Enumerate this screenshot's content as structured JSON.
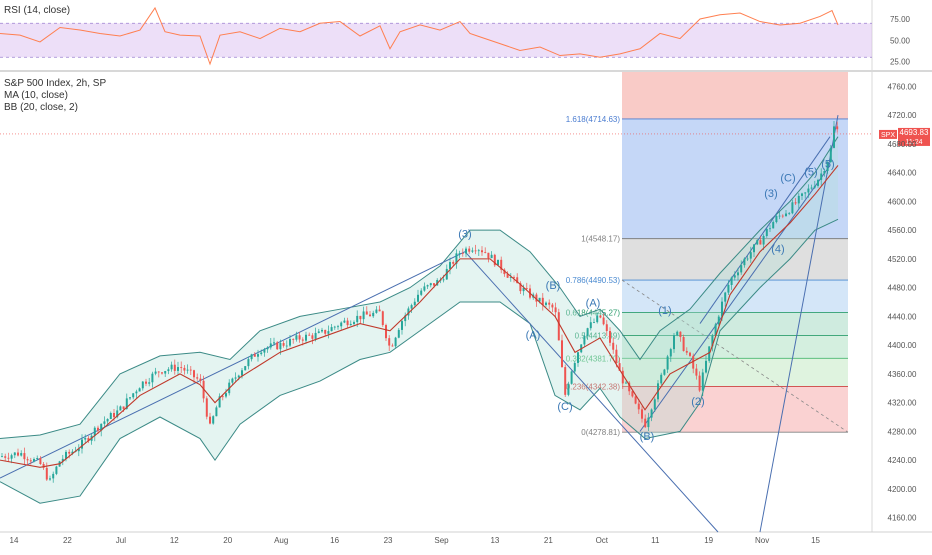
{
  "chart_data": [
    {
      "type": "line",
      "name": "RSI (14, close)",
      "legend": [
        "RSI (14, close)"
      ],
      "y_ticks": [
        "75.00",
        "50.00",
        "25.00"
      ],
      "band": [
        30,
        70
      ],
      "ylim": [
        15,
        95
      ],
      "color": "#ff7f50",
      "band_color": "#d8b8f0",
      "points": [
        [
          0,
          58
        ],
        [
          20,
          56
        ],
        [
          40,
          48
        ],
        [
          60,
          65
        ],
        [
          80,
          62
        ],
        [
          100,
          58
        ],
        [
          120,
          55
        ],
        [
          140,
          62
        ],
        [
          155,
          88
        ],
        [
          165,
          60
        ],
        [
          180,
          56
        ],
        [
          200,
          55
        ],
        [
          210,
          22
        ],
        [
          220,
          56
        ],
        [
          240,
          60
        ],
        [
          260,
          52
        ],
        [
          280,
          64
        ],
        [
          300,
          60
        ],
        [
          320,
          70
        ],
        [
          340,
          72
        ],
        [
          360,
          55
        ],
        [
          380,
          67
        ],
        [
          390,
          40
        ],
        [
          400,
          60
        ],
        [
          420,
          68
        ],
        [
          440,
          62
        ],
        [
          460,
          72
        ],
        [
          470,
          58
        ],
        [
          480,
          54
        ],
        [
          500,
          46
        ],
        [
          520,
          38
        ],
        [
          540,
          42
        ],
        [
          560,
          32
        ],
        [
          580,
          34
        ],
        [
          600,
          30
        ],
        [
          620,
          34
        ],
        [
          640,
          40
        ],
        [
          660,
          58
        ],
        [
          680,
          52
        ],
        [
          700,
          75
        ],
        [
          720,
          80
        ],
        [
          740,
          82
        ],
        [
          760,
          72
        ],
        [
          780,
          68
        ],
        [
          800,
          70
        ],
        [
          820,
          78
        ],
        [
          832,
          85
        ],
        [
          838,
          68
        ]
      ]
    },
    {
      "type": "candlestick",
      "title": "S&P 500 Index, 2h, SP",
      "legend": [
        "MA (10, close)",
        "BB (20, close, 2)"
      ],
      "ylim": [
        4140,
        4780
      ],
      "y_ticks": [
        "4760.00",
        "4720.00",
        "4680.00",
        "4640.00",
        "4600.00",
        "4560.00",
        "4520.00",
        "4480.00",
        "4440.00",
        "4400.00",
        "4360.00",
        "4320.00",
        "4280.00",
        "4240.00",
        "4200.00",
        "4160.00"
      ],
      "x_ticks": [
        "14",
        "22",
        "Jul",
        "12",
        "20",
        "Aug",
        "16",
        "23",
        "Sep",
        "13",
        "21",
        "Oct",
        "11",
        "19",
        "Nov",
        "15"
      ],
      "price_label": {
        "symbol": "SPX",
        "value": "4693.83",
        "time": "11:24",
        "price": 4693.83
      },
      "fib_levels": [
        {
          "label": "1.618(4714.63)",
          "value": 4714.63,
          "color": "#4a7cd0"
        },
        {
          "label": "1(4548.17)",
          "value": 4548.17,
          "color": "#808080"
        },
        {
          "label": "0.786(4490.53)",
          "value": 4490.53,
          "color": "#4a8ad0"
        },
        {
          "label": "0.618(4445.27)",
          "value": 4445.27,
          "color": "#2e9e6e"
        },
        {
          "label": "0.5(4413.49)",
          "value": 4413.49,
          "color": "#2e9e6e"
        },
        {
          "label": "0.382(4381.70)",
          "value": 4381.7,
          "color": "#4ab870"
        },
        {
          "label": "0.236(4342.38)",
          "value": 4342.38,
          "color": "#d04040"
        },
        {
          "label": "0(4278.81)",
          "value": 4278.81,
          "color": "#808080"
        }
      ],
      "wave_labels": [
        {
          "text": "(3)",
          "t": 465,
          "price": 4550
        },
        {
          "text": "(B)",
          "t": 553,
          "price": 4478
        },
        {
          "text": "(A)",
          "t": 593,
          "price": 4454
        },
        {
          "text": "(A)",
          "t": 533,
          "price": 4409
        },
        {
          "text": "(C)",
          "t": 565,
          "price": 4310
        },
        {
          "text": "(1)",
          "t": 665,
          "price": 4443
        },
        {
          "text": "(B)",
          "t": 647,
          "price": 4268
        },
        {
          "text": "(2)",
          "t": 698,
          "price": 4317
        },
        {
          "text": "(3)",
          "t": 771,
          "price": 4606
        },
        {
          "text": "(C)",
          "t": 788,
          "price": 4628
        },
        {
          "text": "(4)",
          "t": 778,
          "price": 4529
        },
        {
          "text": "(5)",
          "t": 811,
          "price": 4636
        },
        {
          "text": "(5)",
          "t": 828,
          "price": 4647
        }
      ],
      "price_path": [
        [
          0,
          4245
        ],
        [
          20,
          4250
        ],
        [
          40,
          4235
        ],
        [
          50,
          4210
        ],
        [
          60,
          4240
        ],
        [
          80,
          4260
        ],
        [
          100,
          4290
        ],
        [
          120,
          4310
        ],
        [
          140,
          4345
        ],
        [
          160,
          4365
        ],
        [
          180,
          4370
        ],
        [
          200,
          4350
        ],
        [
          210,
          4285
        ],
        [
          218,
          4320
        ],
        [
          240,
          4365
        ],
        [
          260,
          4395
        ],
        [
          280,
          4400
        ],
        [
          300,
          4410
        ],
        [
          320,
          4415
        ],
        [
          340,
          4430
        ],
        [
          360,
          4440
        ],
        [
          380,
          4445
        ],
        [
          390,
          4395
        ],
        [
          400,
          4430
        ],
        [
          420,
          4475
        ],
        [
          440,
          4490
        ],
        [
          460,
          4530
        ],
        [
          475,
          4538
        ],
        [
          485,
          4530
        ],
        [
          500,
          4510
        ],
        [
          520,
          4480
        ],
        [
          540,
          4460
        ],
        [
          555,
          4450
        ],
        [
          565,
          4330
        ],
        [
          570,
          4360
        ],
        [
          585,
          4420
        ],
        [
          600,
          4440
        ],
        [
          610,
          4405
        ],
        [
          620,
          4360
        ],
        [
          630,
          4330
        ],
        [
          645,
          4290
        ],
        [
          660,
          4350
        ],
        [
          675,
          4420
        ],
        [
          690,
          4380
        ],
        [
          700,
          4340
        ],
        [
          710,
          4400
        ],
        [
          720,
          4450
        ],
        [
          730,
          4490
        ],
        [
          745,
          4520
        ],
        [
          760,
          4545
        ],
        [
          775,
          4575
        ],
        [
          790,
          4590
        ],
        [
          805,
          4610
        ],
        [
          820,
          4635
        ],
        [
          830,
          4665
        ],
        [
          835,
          4712
        ],
        [
          838,
          4694
        ]
      ],
      "ma_path": [
        [
          0,
          4240
        ],
        [
          40,
          4230
        ],
        [
          60,
          4235
        ],
        [
          100,
          4280
        ],
        [
          140,
          4330
        ],
        [
          180,
          4360
        ],
        [
          200,
          4345
        ],
        [
          215,
          4320
        ],
        [
          240,
          4355
        ],
        [
          280,
          4390
        ],
        [
          320,
          4410
        ],
        [
          360,
          4430
        ],
        [
          390,
          4420
        ],
        [
          420,
          4460
        ],
        [
          460,
          4520
        ],
        [
          490,
          4520
        ],
        [
          520,
          4485
        ],
        [
          555,
          4440
        ],
        [
          575,
          4390
        ],
        [
          600,
          4410
        ],
        [
          620,
          4365
        ],
        [
          645,
          4310
        ],
        [
          670,
          4360
        ],
        [
          690,
          4375
        ],
        [
          710,
          4390
        ],
        [
          730,
          4470
        ],
        [
          760,
          4530
        ],
        [
          790,
          4570
        ],
        [
          815,
          4610
        ],
        [
          838,
          4650
        ]
      ],
      "bb_upper": [
        [
          0,
          4270
        ],
        [
          40,
          4275
        ],
        [
          80,
          4290
        ],
        [
          120,
          4360
        ],
        [
          160,
          4385
        ],
        [
          200,
          4390
        ],
        [
          230,
          4380
        ],
        [
          260,
          4420
        ],
        [
          300,
          4440
        ],
        [
          340,
          4450
        ],
        [
          380,
          4460
        ],
        [
          410,
          4480
        ],
        [
          440,
          4510
        ],
        [
          470,
          4560
        ],
        [
          500,
          4560
        ],
        [
          530,
          4530
        ],
        [
          560,
          4480
        ],
        [
          580,
          4440
        ],
        [
          600,
          4450
        ],
        [
          620,
          4420
        ],
        [
          640,
          4380
        ],
        [
          660,
          4420
        ],
        [
          690,
          4450
        ],
        [
          720,
          4500
        ],
        [
          760,
          4560
        ],
        [
          790,
          4600
        ],
        [
          815,
          4640
        ],
        [
          838,
          4690
        ]
      ],
      "bb_lower": [
        [
          0,
          4210
        ],
        [
          40,
          4180
        ],
        [
          80,
          4190
        ],
        [
          120,
          4270
        ],
        [
          160,
          4300
        ],
        [
          200,
          4270
        ],
        [
          215,
          4240
        ],
        [
          240,
          4290
        ],
        [
          280,
          4330
        ],
        [
          320,
          4350
        ],
        [
          360,
          4380
        ],
        [
          390,
          4390
        ],
        [
          420,
          4420
        ],
        [
          460,
          4460
        ],
        [
          500,
          4460
        ],
        [
          530,
          4430
        ],
        [
          555,
          4330
        ],
        [
          580,
          4310
        ],
        [
          600,
          4340
        ],
        [
          620,
          4300
        ],
        [
          645,
          4270
        ],
        [
          680,
          4280
        ],
        [
          700,
          4320
        ],
        [
          720,
          4420
        ],
        [
          760,
          4480
        ],
        [
          790,
          4520
        ],
        [
          815,
          4560
        ],
        [
          838,
          4575
        ]
      ]
    }
  ]
}
